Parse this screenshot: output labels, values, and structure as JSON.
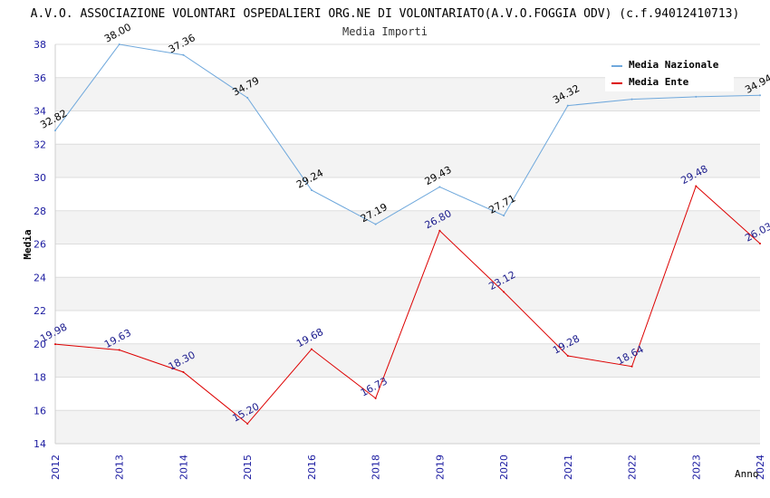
{
  "chart_data": {
    "type": "line",
    "title": "A.V.O. ASSOCIAZIONE VOLONTARI OSPEDALIERI ORG.NE DI VOLONTARIATO(A.V.O.FOGGIA ODV) (c.f.94012410713)",
    "subtitle": "Media Importi",
    "xlabel": "Anno",
    "ylabel": "Media",
    "ylim": [
      14,
      38
    ],
    "yticks": [
      "14",
      "16",
      "18",
      "20",
      "22",
      "24",
      "26",
      "28",
      "30",
      "32",
      "34",
      "36",
      "38"
    ],
    "categories": [
      "2012",
      "2013",
      "2014",
      "2015",
      "2016",
      "2018",
      "2019",
      "2020",
      "2021",
      "2022",
      "2023",
      "2024"
    ],
    "grid": true,
    "legend_position": "top-right",
    "series": [
      {
        "name": "Media Nazionale",
        "color": "#6fa8dc",
        "label_color": "#000000",
        "values": [
          32.82,
          38.0,
          37.36,
          34.79,
          29.24,
          27.19,
          29.43,
          27.71,
          34.32,
          34.7,
          34.85,
          34.94
        ],
        "labels": [
          "32.82",
          "38.00",
          "37.36",
          "34.79",
          "29.24",
          "27.19",
          "29.43",
          "27.71",
          "34.32",
          "",
          "",
          "34.94"
        ]
      },
      {
        "name": "Media Ente",
        "color": "#dd0000",
        "label_color": "#1a1a8c",
        "values": [
          19.98,
          19.63,
          18.3,
          15.2,
          19.68,
          16.73,
          26.8,
          23.12,
          19.28,
          18.64,
          29.48,
          26.03
        ],
        "labels": [
          "19.98",
          "19.63",
          "18.30",
          "15.20",
          "19.68",
          "16.73",
          "26.80",
          "23.12",
          "19.28",
          "18.64",
          "29.48",
          "26.03"
        ]
      }
    ]
  }
}
